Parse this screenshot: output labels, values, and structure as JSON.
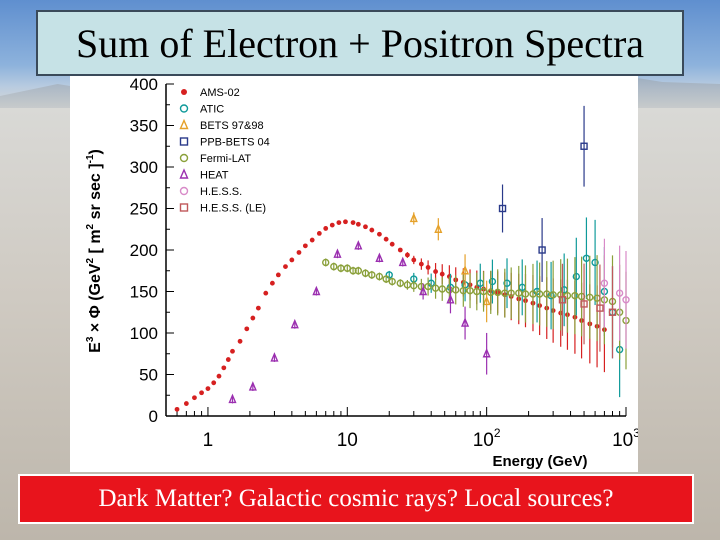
{
  "slide": {
    "title": "Sum of Electron + Positron Spectra",
    "caption": "Dark Matter? Galactic cosmic rays? Local sources?"
  },
  "colors": {
    "title_bg": "#c6e2e6",
    "caption_bg": "#e8141c",
    "caption_text": "#ffffff"
  },
  "chart_data": {
    "type": "scatter",
    "xscale": "log",
    "xlim": [
      0.5,
      1000
    ],
    "ylim": [
      0,
      400
    ],
    "xlabel": "Energy (GeV)",
    "ylabel": "E³ × Φ (GeV² [ m² sr sec ]⁻¹)",
    "xlabel_parts": {
      "main": "Energy (GeV)"
    },
    "ylabel_parts": {
      "p1": "E",
      "sup1": "3",
      "p2": " × Φ  (GeV",
      "sup2": "2",
      "p3": " [ m",
      "sup3": "2",
      "p4": " sr sec ]",
      "sup4": "-1",
      "p5": ")"
    },
    "y_ticks": [
      0,
      50,
      100,
      150,
      200,
      250,
      300,
      350,
      400
    ],
    "x_ticks": [
      {
        "value": 1,
        "base": "1",
        "exp": ""
      },
      {
        "value": 10,
        "base": "10",
        "exp": ""
      },
      {
        "value": 100,
        "base": "10",
        "exp": "2"
      },
      {
        "value": 1000,
        "base": "10",
        "exp": "3"
      }
    ],
    "legend_position": "top-left",
    "series": [
      {
        "name": "AMS-02",
        "color": "#d62020",
        "marker": "dot",
        "points": [
          [
            0.6,
            8
          ],
          [
            0.7,
            15
          ],
          [
            0.8,
            22
          ],
          [
            0.9,
            28
          ],
          [
            1.0,
            33
          ],
          [
            1.1,
            40
          ],
          [
            1.2,
            48
          ],
          [
            1.3,
            58
          ],
          [
            1.4,
            68
          ],
          [
            1.5,
            78
          ],
          [
            1.7,
            90
          ],
          [
            1.9,
            105
          ],
          [
            2.1,
            118
          ],
          [
            2.3,
            130
          ],
          [
            2.6,
            148
          ],
          [
            2.9,
            160
          ],
          [
            3.2,
            170
          ],
          [
            3.6,
            180
          ],
          [
            4.0,
            188
          ],
          [
            4.5,
            197
          ],
          [
            5.0,
            205
          ],
          [
            5.6,
            212
          ],
          [
            6.3,
            220
          ],
          [
            7.0,
            226
          ],
          [
            7.8,
            230
          ],
          [
            8.7,
            233
          ],
          [
            9.7,
            234
          ],
          [
            11,
            233
          ],
          [
            12,
            231
          ],
          [
            13.5,
            228
          ],
          [
            15,
            224
          ],
          [
            17,
            219
          ],
          [
            19,
            213
          ],
          [
            21,
            207
          ],
          [
            24,
            200
          ],
          [
            27,
            194
          ],
          [
            30,
            188
          ],
          [
            34,
            183
          ],
          [
            38,
            179
          ],
          [
            43,
            174
          ],
          [
            48,
            171
          ],
          [
            54,
            168
          ],
          [
            60,
            164
          ],
          [
            68,
            161
          ],
          [
            76,
            158
          ],
          [
            85,
            155
          ],
          [
            95,
            153
          ],
          [
            107,
            151
          ],
          [
            120,
            149
          ],
          [
            135,
            146
          ],
          [
            150,
            144
          ],
          [
            170,
            141
          ],
          [
            190,
            139
          ],
          [
            215,
            136
          ],
          [
            240,
            133
          ],
          [
            270,
            130
          ],
          [
            300,
            127
          ],
          [
            340,
            124
          ],
          [
            380,
            122
          ],
          [
            430,
            119
          ],
          [
            480,
            115
          ],
          [
            550,
            111
          ],
          [
            620,
            108
          ],
          [
            700,
            104
          ]
        ]
      },
      {
        "name": "ATIC",
        "color": "#0f9a9a",
        "marker": "circle",
        "points": [
          [
            20,
            170
          ],
          [
            30,
            165
          ],
          [
            40,
            160
          ],
          [
            55,
            155
          ],
          [
            70,
            158
          ],
          [
            90,
            160
          ],
          [
            110,
            162
          ],
          [
            140,
            160
          ],
          [
            180,
            155
          ],
          [
            230,
            150
          ],
          [
            290,
            145
          ],
          [
            360,
            152
          ],
          [
            440,
            168
          ],
          [
            520,
            190
          ],
          [
            600,
            185
          ],
          [
            700,
            150
          ],
          [
            800,
            125
          ],
          [
            900,
            80
          ]
        ]
      },
      {
        "name": "BETS 97&98",
        "color": "#e5a12a",
        "marker": "triangle",
        "points": [
          [
            30,
            238
          ],
          [
            45,
            225
          ],
          [
            70,
            175
          ],
          [
            100,
            138
          ]
        ]
      },
      {
        "name": "PPB-BETS 04",
        "color": "#2a3a8a",
        "marker": "square",
        "points": [
          [
            130,
            250
          ],
          [
            250,
            200
          ],
          [
            500,
            325
          ]
        ]
      },
      {
        "name": "Fermi-LAT",
        "color": "#8aa03a",
        "marker": "circle",
        "points": [
          [
            7,
            185
          ],
          [
            8,
            180
          ],
          [
            9,
            178
          ],
          [
            10,
            178
          ],
          [
            11,
            175
          ],
          [
            12,
            175
          ],
          [
            13.5,
            172
          ],
          [
            15,
            170
          ],
          [
            17,
            168
          ],
          [
            19,
            165
          ],
          [
            21,
            162
          ],
          [
            24,
            160
          ],
          [
            27,
            158
          ],
          [
            30,
            157
          ],
          [
            34,
            156
          ],
          [
            38,
            156
          ],
          [
            43,
            154
          ],
          [
            48,
            153
          ],
          [
            54,
            152
          ],
          [
            60,
            152
          ],
          [
            68,
            151
          ],
          [
            76,
            151
          ],
          [
            85,
            150
          ],
          [
            95,
            150
          ],
          [
            107,
            149
          ],
          [
            120,
            149
          ],
          [
            135,
            148
          ],
          [
            150,
            148
          ],
          [
            170,
            148
          ],
          [
            190,
            147
          ],
          [
            215,
            147
          ],
          [
            240,
            147
          ],
          [
            270,
            147
          ],
          [
            300,
            146
          ],
          [
            340,
            146
          ],
          [
            380,
            145
          ],
          [
            430,
            145
          ],
          [
            480,
            144
          ],
          [
            550,
            143
          ],
          [
            620,
            142
          ],
          [
            700,
            140
          ],
          [
            800,
            138
          ],
          [
            900,
            125
          ],
          [
            1000,
            115
          ]
        ]
      },
      {
        "name": "HEAT",
        "color": "#9b2fb0",
        "marker": "triangle",
        "points": [
          [
            1.5,
            20
          ],
          [
            2.1,
            35
          ],
          [
            3.0,
            70
          ],
          [
            4.2,
            110
          ],
          [
            6,
            150
          ],
          [
            8.5,
            195
          ],
          [
            12,
            205
          ],
          [
            17,
            190
          ],
          [
            25,
            185
          ],
          [
            35,
            150
          ],
          [
            55,
            140
          ],
          [
            70,
            112
          ],
          [
            100,
            75
          ]
        ]
      },
      {
        "name": "H.E.S.S.",
        "color": "#d88ac8",
        "marker": "circle",
        "points": [
          [
            700,
            160
          ],
          [
            900,
            148
          ],
          [
            1000,
            140
          ]
        ]
      },
      {
        "name": "H.E.S.S. (LE)",
        "color": "#c0585a",
        "marker": "square",
        "points": [
          [
            350,
            140
          ],
          [
            500,
            135
          ],
          [
            650,
            130
          ],
          [
            800,
            125
          ]
        ]
      }
    ]
  }
}
